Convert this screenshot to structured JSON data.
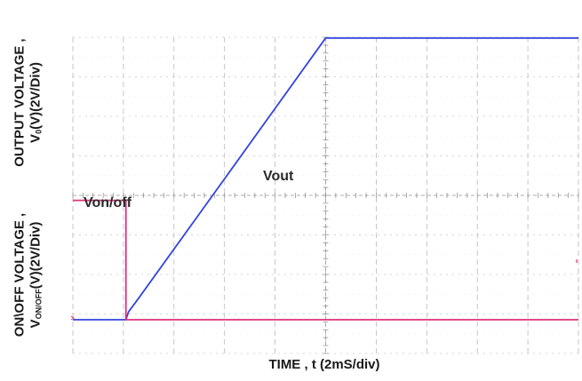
{
  "chart_data": {
    "type": "line",
    "xlabel": "TIME , t (2mS/div)",
    "ylabel_top": {
      "line1": "OUTPUT VOLTAGE ,",
      "line2_main": "V",
      "line2_sub": "0",
      "line2_rest": "(V)(2V/Div)"
    },
    "ylabel_bottom": {
      "line1": "ON\\OFF VOLTAGE ,",
      "line2_main": "V",
      "line2_sub": "ON/OFF",
      "line2_rest": "(V)(2V/Div)"
    },
    "x_divisions": 10,
    "y_divisions": 8,
    "grid": true,
    "series": [
      {
        "name": "Vout",
        "color": "#3344dd",
        "points_div": [
          [
            0,
            0
          ],
          [
            1.05,
            0
          ],
          [
            1.1,
            0.2
          ],
          [
            1.3,
            0.55
          ],
          [
            3.0,
            3.6
          ],
          [
            5.0,
            7.2
          ],
          [
            10,
            7.2
          ]
        ]
      },
      {
        "name": "Von/off",
        "color": "#e0307a",
        "points_div": [
          [
            0,
            3.05
          ],
          [
            1.05,
            3.05
          ],
          [
            1.05,
            0
          ],
          [
            10,
            0
          ]
        ]
      }
    ],
    "annotations": [
      {
        "label": "Vout",
        "series": "Vout"
      },
      {
        "label": "Von/off",
        "series": "Von/off"
      }
    ]
  }
}
